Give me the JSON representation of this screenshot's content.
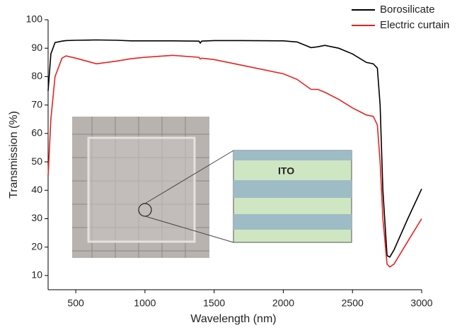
{
  "chart_data": {
    "type": "line",
    "x_label": "Wavelength (nm)",
    "y_label": "Transmission (%)",
    "annotations": [
      "ITO"
    ],
    "x": [
      300,
      320,
      350,
      400,
      430,
      500,
      650,
      800,
      900,
      1000,
      1200,
      1390,
      1400,
      1410,
      1500,
      1700,
      2000,
      2100,
      2200,
      2250,
      2300,
      2400,
      2500,
      2600,
      2650,
      2680,
      2700,
      2720,
      2750,
      2770,
      2800,
      2900,
      3000
    ],
    "series": [
      {
        "name": "Borosilicate",
        "color": "#000000",
        "values": [
          75,
          88,
          92,
          92.5,
          92.7,
          92.8,
          92.9,
          92.8,
          92.6,
          92.6,
          92.6,
          92.5,
          91.8,
          92.5,
          92.7,
          92.7,
          92.6,
          92.2,
          90.2,
          90.5,
          91,
          90,
          88,
          85,
          84.5,
          83,
          70,
          40,
          17,
          16.5,
          19,
          30,
          40.5
        ]
      },
      {
        "name": "Electric curtain",
        "color": "#e8211f",
        "values": [
          45,
          65,
          80,
          86.5,
          87.3,
          86.5,
          84.5,
          85.5,
          86.3,
          86.8,
          87.5,
          86.8,
          86.2,
          86.5,
          86,
          84,
          81,
          79,
          75.5,
          75.5,
          74.5,
          72,
          69,
          66.5,
          66,
          63,
          50,
          30,
          14,
          13,
          14,
          22,
          30
        ]
      }
    ],
    "xlim": [
      300,
      3000
    ],
    "ylim": [
      5,
      100
    ],
    "xticks": [
      500,
      1000,
      1500,
      2000,
      2500,
      3000
    ],
    "yticks": [
      10,
      20,
      30,
      40,
      50,
      60,
      70,
      80,
      90,
      100
    ],
    "legend": "top-right"
  }
}
